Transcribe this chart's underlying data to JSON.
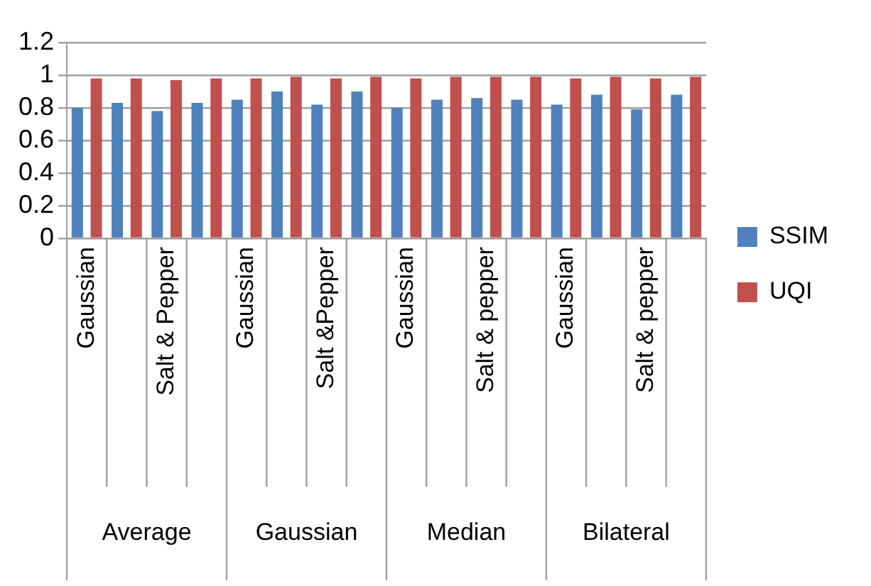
{
  "chart_data": {
    "type": "bar",
    "categories": [
      "Gaussian",
      null,
      "Salt & Pepper",
      null,
      "Gaussian",
      null,
      "Salt &Pepper",
      null,
      "Gaussian",
      null,
      "Salt & pepper",
      null,
      "Gaussian",
      null,
      "Salt & pepper",
      null
    ],
    "series": [
      {
        "name": "SSIM",
        "color": "#4f81bd",
        "values": [
          0.8,
          0.83,
          0.78,
          0.83,
          0.85,
          0.9,
          0.82,
          0.9,
          0.8,
          0.85,
          0.86,
          0.85,
          0.82,
          0.88,
          0.79,
          0.88
        ]
      },
      {
        "name": "UQI",
        "color": "#c0504d",
        "values": [
          0.98,
          0.98,
          0.97,
          0.98,
          0.98,
          0.99,
          0.98,
          0.99,
          0.98,
          0.99,
          0.99,
          0.99,
          0.98,
          0.99,
          0.98,
          0.99
        ]
      }
    ],
    "annotations": [
      "Average",
      "Gaussian",
      "Median",
      "Bilateral"
    ],
    "ylim": [
      0,
      1.2
    ],
    "yticks": [
      0,
      0.2,
      0.4,
      0.6,
      0.8,
      1,
      1.2
    ],
    "grid": "y",
    "legend": "right"
  }
}
